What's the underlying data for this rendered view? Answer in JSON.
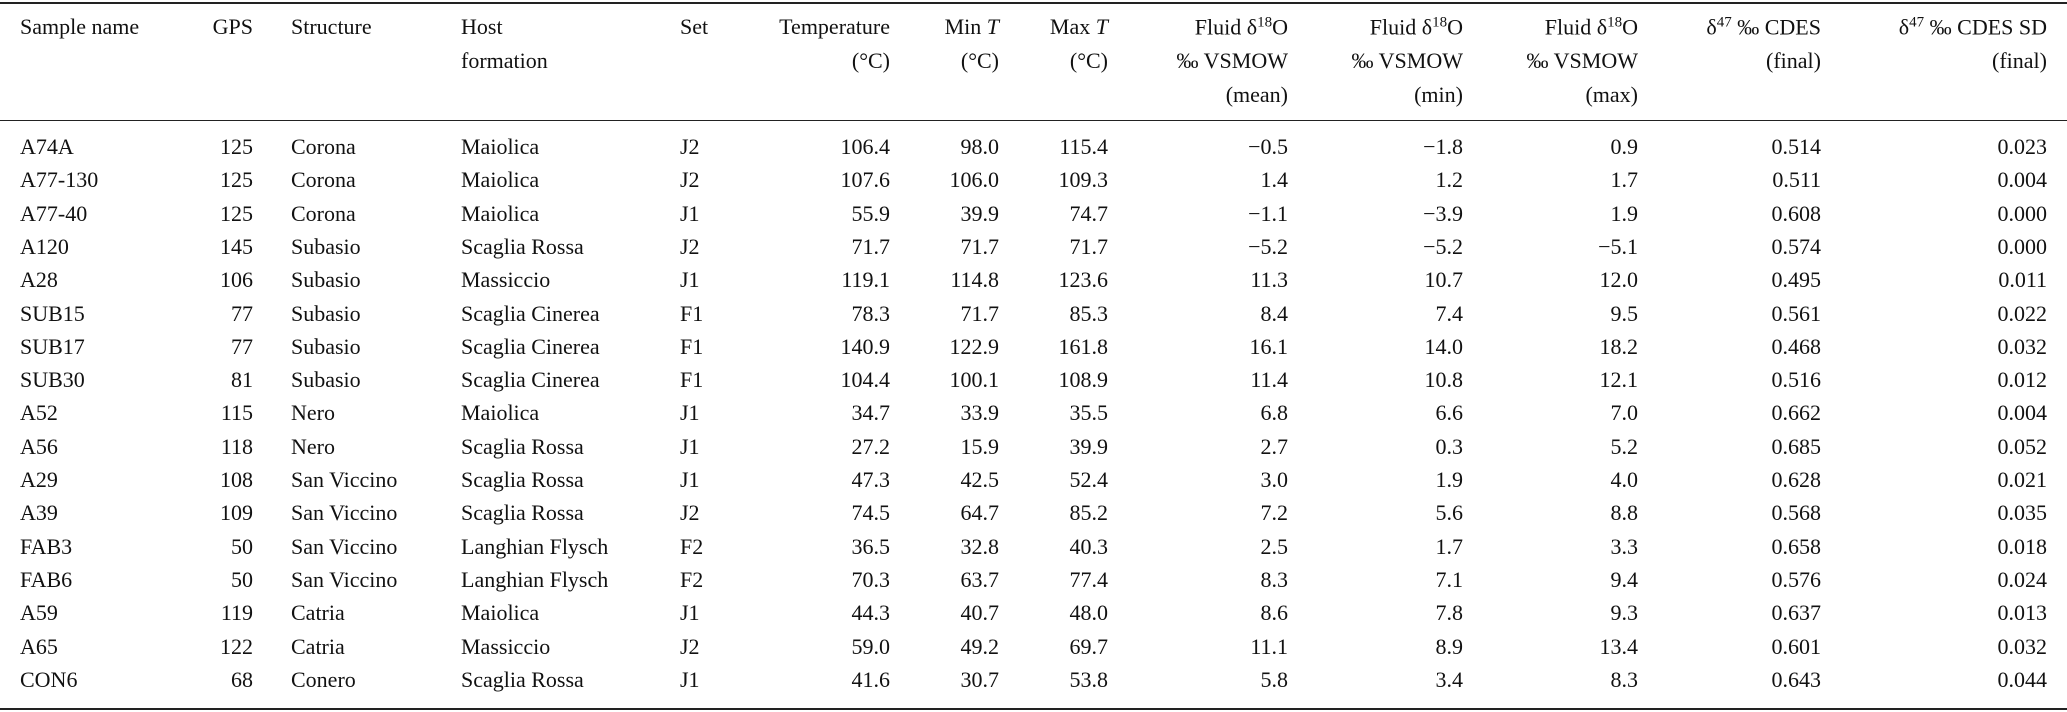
{
  "table": {
    "columns": [
      {
        "lines": [
          [
            {
              "text": "Sample name"
            }
          ]
        ]
      },
      {
        "lines": [
          [
            {
              "text": "GPS"
            }
          ]
        ]
      },
      {
        "lines": [
          [
            {
              "text": "Structure"
            }
          ]
        ]
      },
      {
        "lines": [
          [
            {
              "text": "Host"
            }
          ],
          [
            {
              "text": "formation"
            }
          ]
        ]
      },
      {
        "lines": [
          [
            {
              "text": "Set"
            }
          ]
        ]
      },
      {
        "lines": [
          [
            {
              "text": "Temperature"
            }
          ],
          [
            {
              "text": "(°C)"
            }
          ]
        ]
      },
      {
        "lines": [
          [
            {
              "text": "Min "
            },
            {
              "text": "T",
              "italic": true
            }
          ],
          [
            {
              "text": "(°C)"
            }
          ]
        ]
      },
      {
        "lines": [
          [
            {
              "text": "Max "
            },
            {
              "text": "T",
              "italic": true
            }
          ],
          [
            {
              "text": "(°C)"
            }
          ]
        ]
      },
      {
        "lines": [
          [
            {
              "text": "Fluid δ"
            },
            {
              "text": "18",
              "sup": true
            },
            {
              "text": "O"
            }
          ],
          [
            {
              "text": "‰ VSMOW"
            }
          ],
          [
            {
              "text": "(mean)"
            }
          ]
        ]
      },
      {
        "lines": [
          [
            {
              "text": "Fluid δ"
            },
            {
              "text": "18",
              "sup": true
            },
            {
              "text": "O"
            }
          ],
          [
            {
              "text": "‰ VSMOW"
            }
          ],
          [
            {
              "text": "(min)"
            }
          ]
        ]
      },
      {
        "lines": [
          [
            {
              "text": "Fluid δ"
            },
            {
              "text": "18",
              "sup": true
            },
            {
              "text": "O"
            }
          ],
          [
            {
              "text": "‰ VSMOW"
            }
          ],
          [
            {
              "text": "(max)"
            }
          ]
        ]
      },
      {
        "lines": [
          [
            {
              "text": "δ"
            },
            {
              "text": "47",
              "sup": true
            },
            {
              "text": " ‰ CDES"
            }
          ],
          [
            {
              "text": "(final)"
            }
          ]
        ]
      },
      {
        "lines": [
          [
            {
              "text": "δ"
            },
            {
              "text": "47",
              "sup": true
            },
            {
              "text": " ‰ CDES SD"
            }
          ],
          [
            {
              "text": "(final)"
            }
          ]
        ]
      }
    ],
    "rows": [
      [
        "A74A",
        "125",
        "Corona",
        "Maiolica",
        "J2",
        "106.4",
        "98.0",
        "115.4",
        "−0.5",
        "−1.8",
        "0.9",
        "0.514",
        "0.023"
      ],
      [
        "A77-130",
        "125",
        "Corona",
        "Maiolica",
        "J2",
        "107.6",
        "106.0",
        "109.3",
        "1.4",
        "1.2",
        "1.7",
        "0.511",
        "0.004"
      ],
      [
        "A77-40",
        "125",
        "Corona",
        "Maiolica",
        "J1",
        "55.9",
        "39.9",
        "74.7",
        "−1.1",
        "−3.9",
        "1.9",
        "0.608",
        "0.000"
      ],
      [
        "A120",
        "145",
        "Subasio",
        "Scaglia Rossa",
        "J2",
        "71.7",
        "71.7",
        "71.7",
        "−5.2",
        "−5.2",
        "−5.1",
        "0.574",
        "0.000"
      ],
      [
        "A28",
        "106",
        "Subasio",
        "Massiccio",
        "J1",
        "119.1",
        "114.8",
        "123.6",
        "11.3",
        "10.7",
        "12.0",
        "0.495",
        "0.011"
      ],
      [
        "SUB15",
        "77",
        "Subasio",
        "Scaglia Cinerea",
        "F1",
        "78.3",
        "71.7",
        "85.3",
        "8.4",
        "7.4",
        "9.5",
        "0.561",
        "0.022"
      ],
      [
        "SUB17",
        "77",
        "Subasio",
        "Scaglia Cinerea",
        "F1",
        "140.9",
        "122.9",
        "161.8",
        "16.1",
        "14.0",
        "18.2",
        "0.468",
        "0.032"
      ],
      [
        "SUB30",
        "81",
        "Subasio",
        "Scaglia Cinerea",
        "F1",
        "104.4",
        "100.1",
        "108.9",
        "11.4",
        "10.8",
        "12.1",
        "0.516",
        "0.012"
      ],
      [
        "A52",
        "115",
        "Nero",
        "Maiolica",
        "J1",
        "34.7",
        "33.9",
        "35.5",
        "6.8",
        "6.6",
        "7.0",
        "0.662",
        "0.004"
      ],
      [
        "A56",
        "118",
        "Nero",
        "Scaglia Rossa",
        "J1",
        "27.2",
        "15.9",
        "39.9",
        "2.7",
        "0.3",
        "5.2",
        "0.685",
        "0.052"
      ],
      [
        "A29",
        "108",
        "San Viccino",
        "Scaglia Rossa",
        "J1",
        "47.3",
        "42.5",
        "52.4",
        "3.0",
        "1.9",
        "4.0",
        "0.628",
        "0.021"
      ],
      [
        "A39",
        "109",
        "San Viccino",
        "Scaglia Rossa",
        "J2",
        "74.5",
        "64.7",
        "85.2",
        "7.2",
        "5.6",
        "8.8",
        "0.568",
        "0.035"
      ],
      [
        "FAB3",
        "50",
        "San Viccino",
        "Langhian Flysch",
        "F2",
        "36.5",
        "32.8",
        "40.3",
        "2.5",
        "1.7",
        "3.3",
        "0.658",
        "0.018"
      ],
      [
        "FAB6",
        "50",
        "San Viccino",
        "Langhian Flysch",
        "F2",
        "70.3",
        "63.7",
        "77.4",
        "8.3",
        "7.1",
        "9.4",
        "0.576",
        "0.024"
      ],
      [
        "A59",
        "119",
        "Catria",
        "Maiolica",
        "J1",
        "44.3",
        "40.7",
        "48.0",
        "8.6",
        "7.8",
        "9.3",
        "0.637",
        "0.013"
      ],
      [
        "A65",
        "122",
        "Catria",
        "Massiccio",
        "J2",
        "59.0",
        "49.2",
        "69.7",
        "11.1",
        "8.9",
        "13.4",
        "0.601",
        "0.032"
      ],
      [
        "CON6",
        "68",
        "Conero",
        "Scaglia Rossa",
        "J1",
        "41.6",
        "30.7",
        "53.8",
        "5.8",
        "3.4",
        "8.3",
        "0.643",
        "0.044"
      ]
    ]
  }
}
